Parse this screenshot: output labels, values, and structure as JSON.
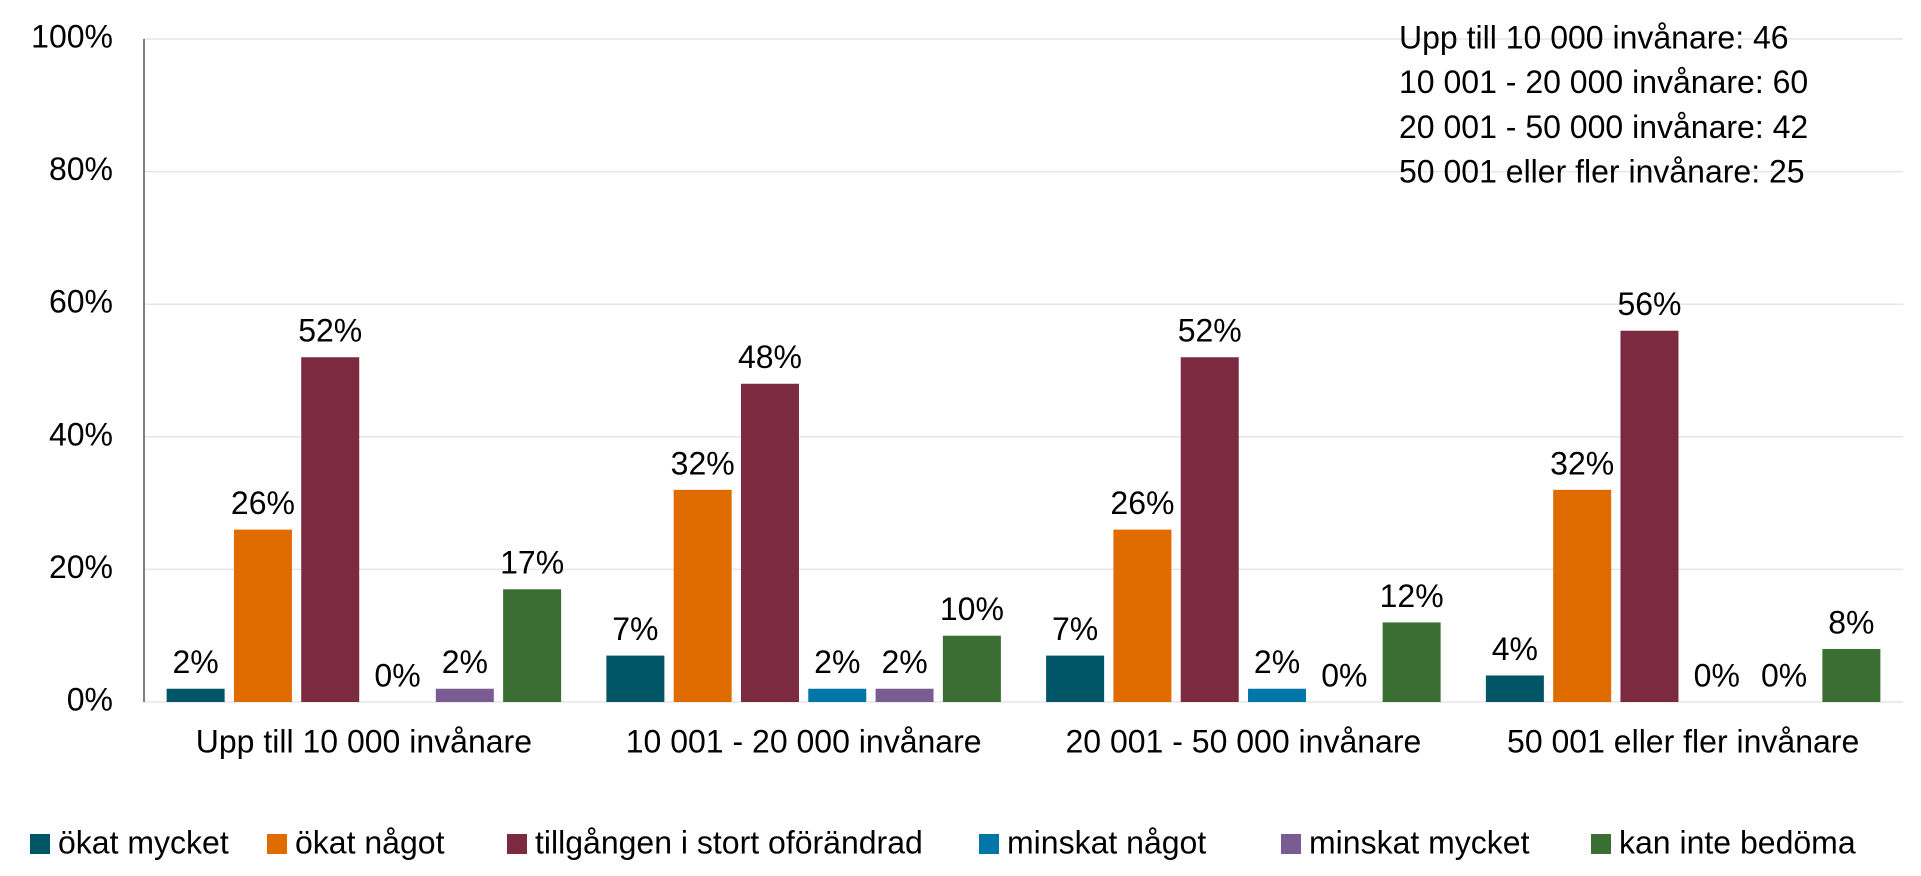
{
  "chart_data": {
    "type": "bar",
    "categories": [
      "Upp till 10 000 invånare",
      "10 001 - 20 000 invånare",
      "20 001 - 50 000 invånare",
      "50 001 eller fler invånare"
    ],
    "series": [
      {
        "name": "ökat mycket",
        "color": "#005566",
        "values": [
          2,
          7,
          7,
          4
        ],
        "value_labels": [
          "2%",
          "7%",
          "7%",
          "4%"
        ]
      },
      {
        "name": "ökat något",
        "color": "#e06c00",
        "values": [
          26,
          32,
          26,
          32
        ],
        "value_labels": [
          "26%",
          "32%",
          "26%",
          "32%"
        ]
      },
      {
        "name": "tillgången i stort oförändrad",
        "color": "#7b2a40",
        "values": [
          52,
          48,
          52,
          56
        ],
        "value_labels": [
          "52%",
          "48%",
          "52%",
          "56%"
        ]
      },
      {
        "name": "minskat något",
        "color": "#0077a8",
        "values": [
          0,
          2,
          2,
          0
        ],
        "value_labels": [
          "0%",
          "2%",
          "2%",
          "0%"
        ]
      },
      {
        "name": "minskat mycket",
        "color": "#7b5c92",
        "values": [
          2,
          2,
          0,
          0
        ],
        "value_labels": [
          "2%",
          "2%",
          "0%",
          "0%"
        ]
      },
      {
        "name": "kan inte bedöma",
        "color": "#3a6e32",
        "values": [
          17,
          10,
          12,
          8
        ],
        "value_labels": [
          "17%",
          "10%",
          "12%",
          "8%"
        ]
      }
    ],
    "ylim": [
      0,
      100
    ],
    "yticks": [
      {
        "value": 0,
        "label": "0%"
      },
      {
        "value": 20,
        "label": "20%"
      },
      {
        "value": 40,
        "label": "40%"
      },
      {
        "value": 60,
        "label": "60%"
      },
      {
        "value": 80,
        "label": "80%"
      },
      {
        "value": 100,
        "label": "100%"
      }
    ],
    "grid": true,
    "legend": "bottom",
    "annotations": [
      "Upp till 10 000 invånare: 46",
      "10 001 - 20 000 invånare: 60",
      "20 001 - 50 000 invånare: 42",
      "50 001 eller fler invånare: 25"
    ]
  }
}
